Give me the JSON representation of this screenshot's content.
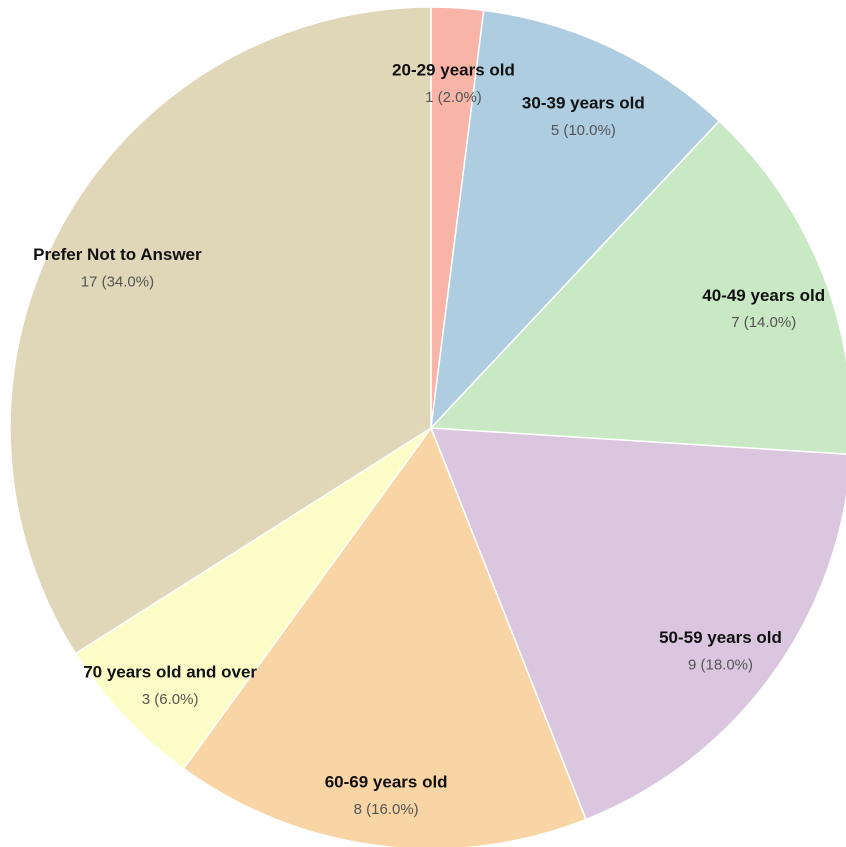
{
  "chart_data": {
    "type": "pie",
    "categories": [
      "20-29 years old",
      "30-39 years old",
      "40-49 years old",
      "50-59 years old",
      "60-69 years old",
      "70 years old and over",
      "Prefer Not to Answer"
    ],
    "values": [
      1,
      5,
      7,
      9,
      8,
      3,
      17
    ],
    "value_labels": [
      "1 (2.0%)",
      "5 (10.0%)",
      "7 (14.0%)",
      "9 (18.0%)",
      "8 (16.0%)",
      "3 (6.0%)",
      "17 (34.0%)"
    ],
    "colors": [
      "#f9b4a8",
      "#aecde1",
      "#c9e8c4",
      "#dbc6e0",
      "#f9d4a4",
      "#fdfdc7",
      "#e0d6b8"
    ]
  }
}
